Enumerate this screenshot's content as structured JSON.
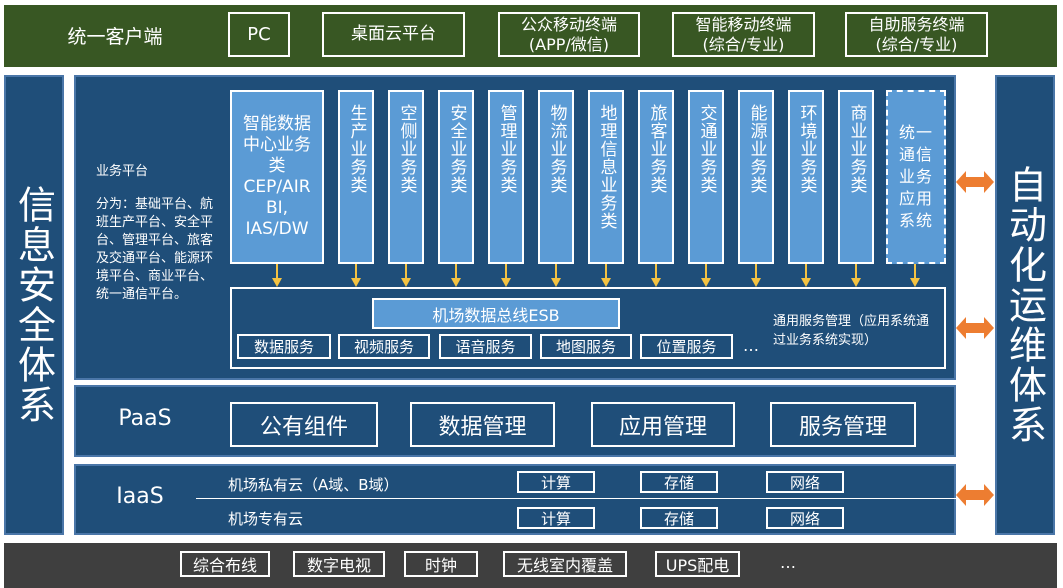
{
  "client": {
    "label": "统一客户端",
    "items": [
      "PC",
      "桌面云平台",
      "公众移动终端\n(APP/微信)",
      "智能移动终端\n(综合/专业)",
      "自助服务终端\n(综合/专业)"
    ]
  },
  "left_side": "信息安全体系",
  "right_side": "自动化运维体系",
  "business": {
    "title": "业务平台",
    "description": "分为：基础平台、航班生产平台、安全平台、管理平台、旅客及交通平台、能源环境平台、商业平台、统一通信平台。",
    "data_center": "智能数据中心业务类CEP/AIR BI, IAS/DW",
    "columns": [
      "生产业务类",
      "空侧业务类",
      "安全业务类",
      "管理业务类",
      "物流业务类",
      "地理信息业务类",
      "旅客业务类",
      "交通业务类",
      "能源业务类",
      "环境业务类",
      "商业业务类"
    ],
    "unified": "统一通信业务应用系统",
    "esb": "机场数据总线ESB",
    "services": [
      "数据服务",
      "视频服务",
      "语音服务",
      "地图服务",
      "位置服务"
    ],
    "ellipsis": "…",
    "note": "通用服务管理（应用系统通过业务系统实现）"
  },
  "paas": {
    "label": "PaaS",
    "items": [
      "公有组件",
      "数据管理",
      "应用管理",
      "服务管理"
    ]
  },
  "iaas": {
    "label": "IaaS",
    "private": "机场私有云（A域、B域）",
    "dedicated": "机场专有云",
    "items": [
      "计算",
      "存储",
      "网络"
    ]
  },
  "infra": {
    "items": [
      "综合布线",
      "数字电视",
      "时钟",
      "无线室内覆盖",
      "UPS配电"
    ],
    "ellipsis": "…"
  },
  "colors": {
    "green": "#385723",
    "blue": "#1f4e79",
    "light_blue": "#5b9bd5",
    "arrow": "#f5c342",
    "orange": "#ed7d31",
    "gray": "#3f3f3f"
  }
}
